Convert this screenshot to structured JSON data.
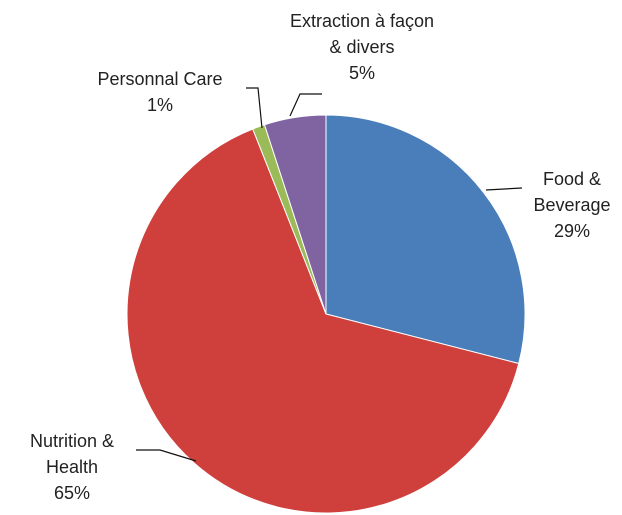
{
  "chart_data": {
    "type": "pie",
    "categories": [
      "Food & Beverage",
      "Nutrition & Health",
      "Personnal Care",
      "Extraction à façon & divers"
    ],
    "values": [
      29,
      65,
      1,
      5
    ],
    "value_labels": [
      "29%",
      "65%",
      "1%",
      "5%"
    ],
    "colors": [
      "#4a7ebb",
      "#cf3f3b",
      "#9bbb59",
      "#8064a2"
    ]
  }
}
